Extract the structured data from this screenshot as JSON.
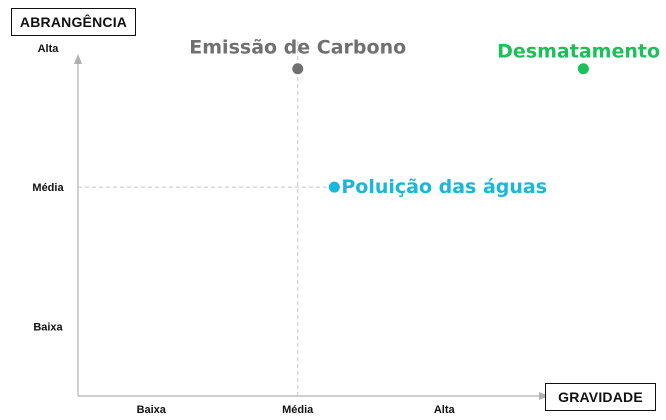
{
  "chart_data": {
    "type": "scatter",
    "xlabel": "GRAVIDADE",
    "ylabel": "ABRANGÊNCIA",
    "x_ticks": [
      "Baixa",
      "Média",
      "Alta"
    ],
    "y_ticks": [
      "Baixa",
      "Média",
      "Alta"
    ],
    "x_range": [
      0.5,
      4.2
    ],
    "y_range": [
      0.5,
      3.2
    ],
    "reference_lines": {
      "x": 2,
      "y": 2
    },
    "points": [
      {
        "label": "Emissão de Carbono",
        "x": 2.0,
        "y": 2.85,
        "color": "#707070"
      },
      {
        "label": "Desmatamento",
        "x": 3.95,
        "y": 2.85,
        "color": "#1dbf5b"
      },
      {
        "label": "Poluição das águas",
        "x": 2.25,
        "y": 2.0,
        "color": "#17b8d8"
      }
    ]
  }
}
